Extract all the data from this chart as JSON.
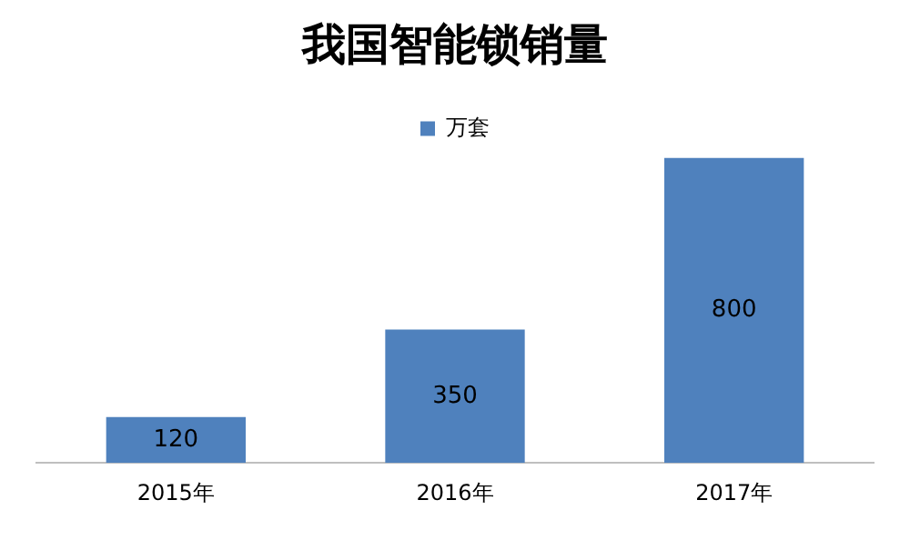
{
  "chart_data": {
    "type": "bar",
    "title": "我国智能锁销量",
    "categories": [
      "2015年",
      "2016年",
      "2017年"
    ],
    "series": [
      {
        "name": "万套",
        "color": "#4f81bd",
        "values": [
          120,
          350,
          800
        ]
      }
    ],
    "data_labels": true,
    "legend": "top",
    "grid": false
  }
}
